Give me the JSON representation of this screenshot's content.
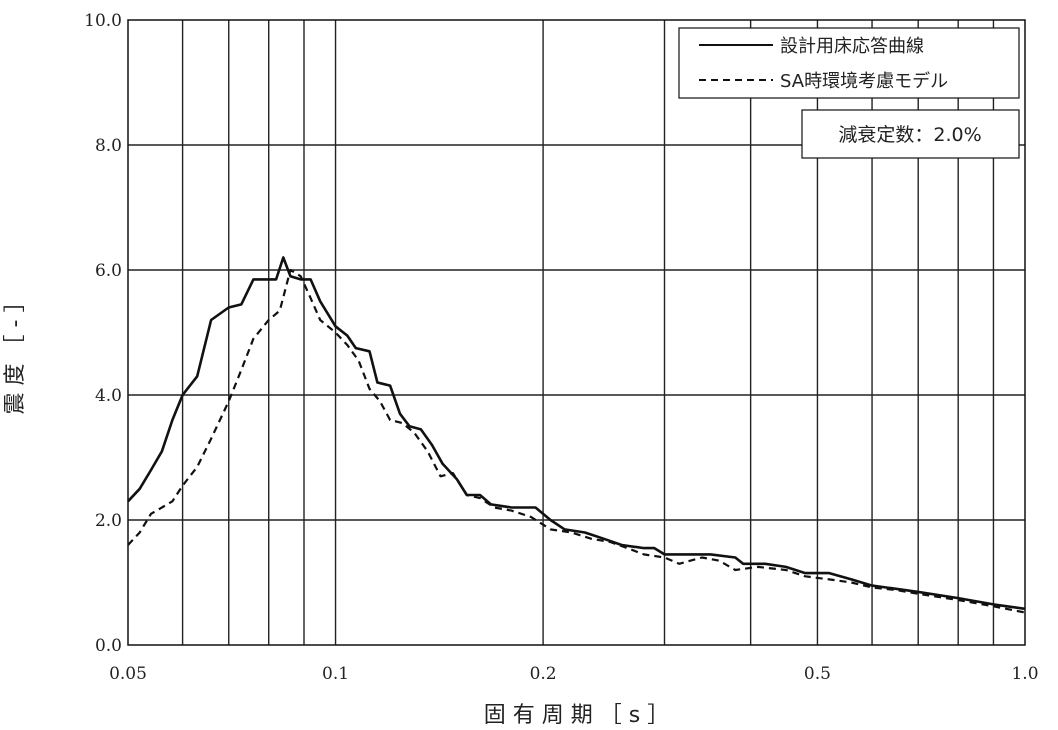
{
  "chart_data": {
    "type": "line",
    "title": "",
    "xlabel": "固 有 周 期 ［ s ］",
    "ylabel": "震 度 ［ - ］",
    "xscale": "log",
    "xlim": [
      0.05,
      1.0
    ],
    "ylim": [
      0.0,
      10.0
    ],
    "grid": true,
    "legend_position": "top-right",
    "x_ticks": [
      "0.05",
      "0.1",
      "0.2",
      "0.5",
      "1.0"
    ],
    "y_ticks": [
      "0.0",
      "2.0",
      "4.0",
      "6.0",
      "8.0",
      "10.0"
    ],
    "annotation": "減衰定数：2.0%",
    "series": [
      {
        "name": "設計用床応答曲線",
        "style": "solid",
        "color": "#111111",
        "points": [
          [
            0.05,
            2.3
          ],
          [
            0.052,
            2.5
          ],
          [
            0.054,
            2.8
          ],
          [
            0.056,
            3.1
          ],
          [
            0.058,
            3.6
          ],
          [
            0.06,
            4.0
          ],
          [
            0.063,
            4.3
          ],
          [
            0.066,
            5.2
          ],
          [
            0.07,
            5.4
          ],
          [
            0.073,
            5.45
          ],
          [
            0.076,
            5.85
          ],
          [
            0.08,
            5.85
          ],
          [
            0.082,
            5.85
          ],
          [
            0.084,
            6.2
          ],
          [
            0.086,
            5.9
          ],
          [
            0.089,
            5.85
          ],
          [
            0.092,
            5.85
          ],
          [
            0.095,
            5.5
          ],
          [
            0.1,
            5.1
          ],
          [
            0.104,
            4.95
          ],
          [
            0.107,
            4.75
          ],
          [
            0.112,
            4.7
          ],
          [
            0.115,
            4.2
          ],
          [
            0.12,
            4.15
          ],
          [
            0.124,
            3.7
          ],
          [
            0.128,
            3.5
          ],
          [
            0.133,
            3.45
          ],
          [
            0.138,
            3.2
          ],
          [
            0.143,
            2.9
          ],
          [
            0.15,
            2.65
          ],
          [
            0.155,
            2.4
          ],
          [
            0.162,
            2.4
          ],
          [
            0.168,
            2.25
          ],
          [
            0.18,
            2.2
          ],
          [
            0.195,
            2.2
          ],
          [
            0.205,
            2.0
          ],
          [
            0.215,
            1.85
          ],
          [
            0.23,
            1.8
          ],
          [
            0.245,
            1.7
          ],
          [
            0.26,
            1.6
          ],
          [
            0.28,
            1.55
          ],
          [
            0.29,
            1.55
          ],
          [
            0.3,
            1.45
          ],
          [
            0.33,
            1.45
          ],
          [
            0.35,
            1.45
          ],
          [
            0.38,
            1.4
          ],
          [
            0.39,
            1.3
          ],
          [
            0.42,
            1.3
          ],
          [
            0.45,
            1.25
          ],
          [
            0.48,
            1.15
          ],
          [
            0.52,
            1.15
          ],
          [
            0.56,
            1.05
          ],
          [
            0.6,
            0.95
          ],
          [
            0.65,
            0.9
          ],
          [
            0.7,
            0.85
          ],
          [
            0.8,
            0.75
          ],
          [
            0.9,
            0.65
          ],
          [
            1.0,
            0.58
          ]
        ]
      },
      {
        "name": "SA時環境考慮モデル",
        "style": "dashed",
        "color": "#111111",
        "points": [
          [
            0.05,
            1.6
          ],
          [
            0.052,
            1.8
          ],
          [
            0.054,
            2.1
          ],
          [
            0.056,
            2.2
          ],
          [
            0.058,
            2.3
          ],
          [
            0.06,
            2.55
          ],
          [
            0.063,
            2.85
          ],
          [
            0.066,
            3.3
          ],
          [
            0.07,
            3.9
          ],
          [
            0.073,
            4.4
          ],
          [
            0.076,
            4.9
          ],
          [
            0.08,
            5.2
          ],
          [
            0.083,
            5.35
          ],
          [
            0.086,
            6.0
          ],
          [
            0.089,
            5.9
          ],
          [
            0.092,
            5.55
          ],
          [
            0.095,
            5.2
          ],
          [
            0.1,
            5.0
          ],
          [
            0.104,
            4.8
          ],
          [
            0.108,
            4.55
          ],
          [
            0.112,
            4.1
          ],
          [
            0.116,
            3.9
          ],
          [
            0.12,
            3.6
          ],
          [
            0.125,
            3.55
          ],
          [
            0.13,
            3.4
          ],
          [
            0.136,
            3.1
          ],
          [
            0.142,
            2.7
          ],
          [
            0.148,
            2.75
          ],
          [
            0.155,
            2.4
          ],
          [
            0.162,
            2.35
          ],
          [
            0.17,
            2.2
          ],
          [
            0.18,
            2.15
          ],
          [
            0.192,
            2.05
          ],
          [
            0.205,
            1.85
          ],
          [
            0.22,
            1.8
          ],
          [
            0.235,
            1.7
          ],
          [
            0.25,
            1.65
          ],
          [
            0.265,
            1.55
          ],
          [
            0.28,
            1.45
          ],
          [
            0.3,
            1.4
          ],
          [
            0.315,
            1.3
          ],
          [
            0.34,
            1.4
          ],
          [
            0.36,
            1.35
          ],
          [
            0.38,
            1.2
          ],
          [
            0.41,
            1.25
          ],
          [
            0.45,
            1.2
          ],
          [
            0.48,
            1.1
          ],
          [
            0.52,
            1.05
          ],
          [
            0.56,
            1.0
          ],
          [
            0.6,
            0.92
          ],
          [
            0.65,
            0.88
          ],
          [
            0.7,
            0.82
          ],
          [
            0.8,
            0.72
          ],
          [
            0.9,
            0.62
          ],
          [
            1.0,
            0.52
          ]
        ]
      }
    ]
  }
}
